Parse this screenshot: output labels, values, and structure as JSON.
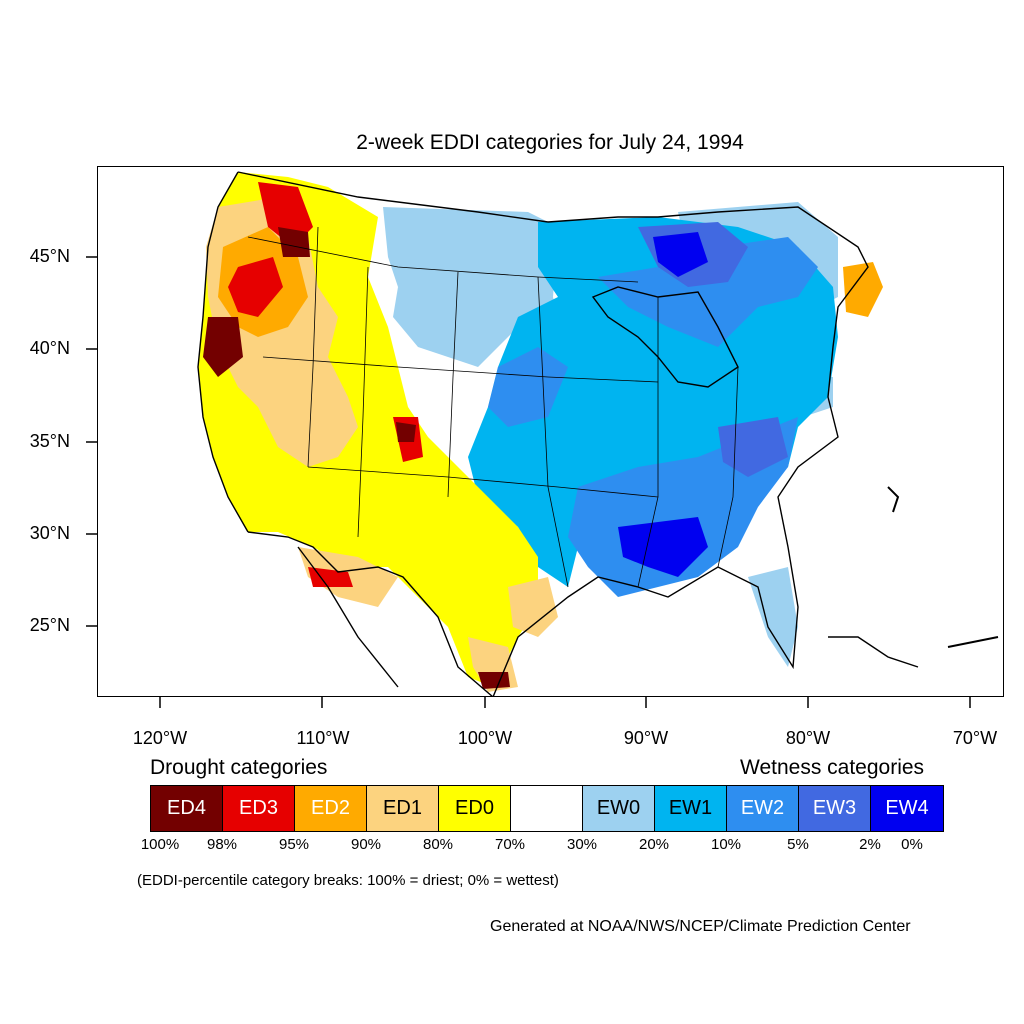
{
  "title": "2-week EDDI categories for July 24, 1994",
  "lat_labels": [
    "45°N",
    "40°N",
    "35°N",
    "30°N",
    "25°N"
  ],
  "lon_labels": [
    "120°W",
    "110°W",
    "100°W",
    "90°W",
    "80°W",
    "70°W"
  ],
  "drought_heading": "Drought categories",
  "wetness_heading": "Wetness categories",
  "legend": [
    {
      "label": "ED4",
      "color": "#730000",
      "text_color": "#ffffff"
    },
    {
      "label": "ED3",
      "color": "#e60000",
      "text_color": "#ffffff"
    },
    {
      "label": "ED2",
      "color": "#ffaa00",
      "text_color": "#ffffff"
    },
    {
      "label": "ED1",
      "color": "#fcd37f",
      "text_color": "#000000"
    },
    {
      "label": "ED0",
      "color": "#ffff00",
      "text_color": "#000000"
    },
    {
      "label": "",
      "color": "#ffffff",
      "text_color": "#000000"
    },
    {
      "label": "EW0",
      "color": "#9dd1f0",
      "text_color": "#000000"
    },
    {
      "label": "EW1",
      "color": "#00b4f0",
      "text_color": "#000000"
    },
    {
      "label": "EW2",
      "color": "#2e8ef0",
      "text_color": "#ffffff"
    },
    {
      "label": "EW3",
      "color": "#4169e1",
      "text_color": "#ffffff"
    },
    {
      "label": "EW4",
      "color": "#0000f0",
      "text_color": "#ffffff"
    }
  ],
  "percent_labels": [
    "100%",
    "98%",
    "95%",
    "90%",
    "80%",
    "70%",
    "30%",
    "20%",
    "10%",
    "5%",
    "2%",
    "0%"
  ],
  "note": "(EDDI-percentile category breaks: 100% = driest; 0% = wettest)",
  "credit": "Generated at NOAA/NWS/NCEP/Climate Prediction Center"
}
